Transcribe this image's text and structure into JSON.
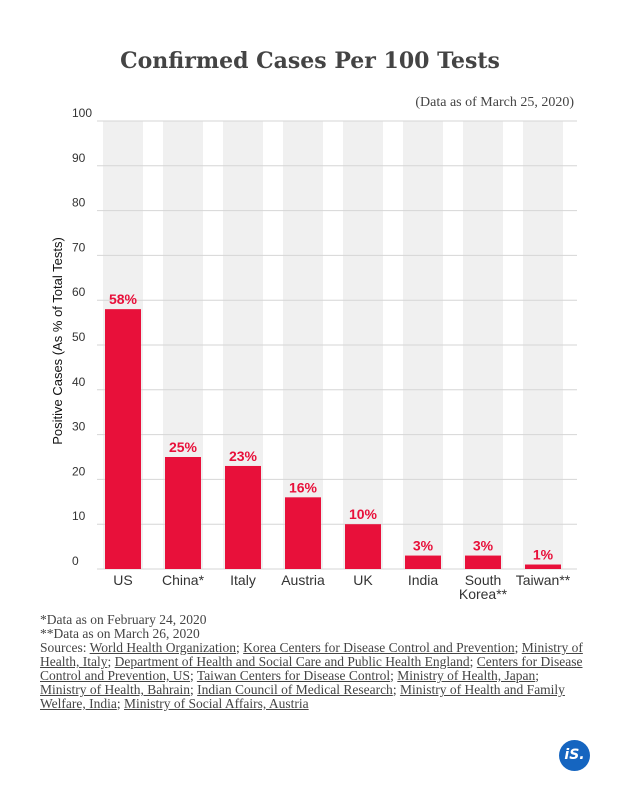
{
  "title": "Confirmed Cases Per 100 Tests",
  "subtitle": "(Data as of March 25, 2020)",
  "colors": {
    "bar": "#e8103a",
    "band": "#f0f0f0",
    "grid": "#d6d6d6",
    "brand": "#1565c0"
  },
  "chart_data": {
    "type": "bar",
    "categories": [
      "US",
      "China*",
      "Italy",
      "Austria",
      "UK",
      "India",
      "South Korea**",
      "Taiwan**"
    ],
    "category_lines": [
      [
        "US"
      ],
      [
        "China*"
      ],
      [
        "Italy"
      ],
      [
        "Austria"
      ],
      [
        "UK"
      ],
      [
        "India"
      ],
      [
        "South",
        "Korea**"
      ],
      [
        "Taiwan**"
      ]
    ],
    "values": [
      58,
      25,
      23,
      16,
      10,
      3,
      3,
      1
    ],
    "data_labels": [
      "58%",
      "25%",
      "23%",
      "16%",
      "10%",
      "3%",
      "3%",
      "1%"
    ],
    "ylabel": "Positive Cases (As % of Total Tests)",
    "xlabel": "",
    "ylim": [
      0,
      100
    ],
    "yticks": [
      0,
      10,
      20,
      30,
      40,
      50,
      60,
      70,
      80,
      90,
      100
    ],
    "grid": true,
    "legend": "none"
  },
  "footnotes": {
    "note1": "*Data as on February 24, 2020",
    "note2": "**Data as on March 26, 2020",
    "sources_prefix": "Sources: ",
    "sources": [
      "World Health Organization",
      "Korea Centers for Disease Control and Prevention",
      "Ministry of Health, Italy",
      "Department of Health and Social Care and Public Health England",
      "Centers for Disease Control and Prevention, US",
      "Taiwan Centers for Disease Control",
      "Ministry of Health, Japan",
      "Ministry of Health, Bahrain",
      "Indian Council of Medical Research",
      "Ministry of Health and Family Welfare, India",
      "Ministry of Social Affairs, Austria"
    ]
  },
  "brand": {
    "logo_text": "iS.",
    "logo_icon": "brand-logo-icon"
  }
}
